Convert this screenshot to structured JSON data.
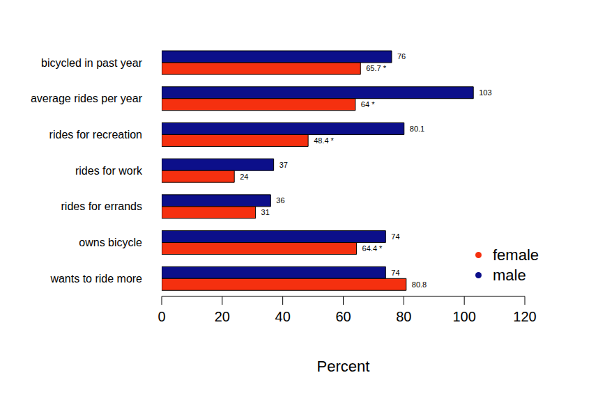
{
  "chart_data": {
    "type": "bar",
    "orientation": "horizontal",
    "categories": [
      "bicycled in past year",
      "average rides per year",
      "rides for recreation",
      "rides for work",
      "rides for errands",
      "owns bicycle",
      "wants to ride more"
    ],
    "series": [
      {
        "name": "female",
        "color": "#f5300f",
        "values": [
          65.7,
          64,
          48.4,
          24,
          31,
          64.4,
          80.8
        ],
        "value_labels": [
          "65.7 *",
          "64 *",
          "48.4 *",
          "24",
          "31",
          "64.4 *",
          "80.8"
        ]
      },
      {
        "name": "male",
        "color": "#0c0f8a",
        "values": [
          76,
          103,
          80.1,
          37,
          36,
          74,
          74
        ]
      }
    ],
    "xlabel": "Percent",
    "xlim": [
      0,
      120
    ],
    "xticks": [
      0,
      20,
      40,
      60,
      80,
      100,
      120
    ],
    "grid": false,
    "legend": "lower right",
    "data_labels": true
  }
}
